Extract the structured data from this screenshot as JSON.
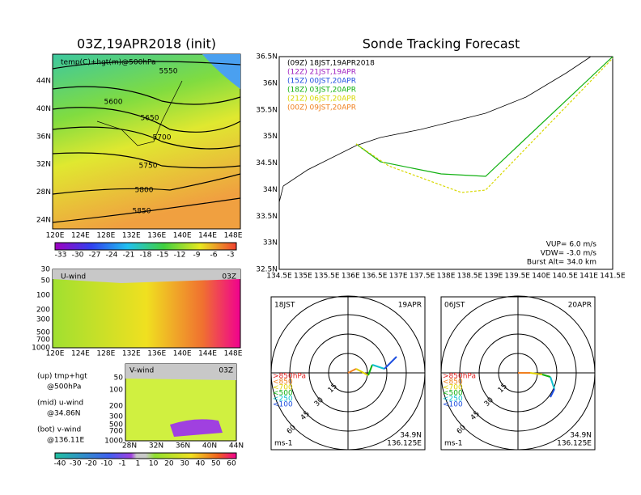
{
  "left_map": {
    "title": "03Z,19APR2018 (init)",
    "label": "temp(C)+hgt(m)@500hPa",
    "contour_labels": [
      "5550",
      "5600",
      "5650",
      "5700",
      "5750",
      "5800",
      "5850"
    ],
    "y_labels": [
      "44N",
      "40N",
      "36N",
      "32N",
      "28N",
      "24N"
    ],
    "x_labels": [
      "120E",
      "124E",
      "128E",
      "132E",
      "136E",
      "140E",
      "144E",
      "148E"
    ],
    "colorbar_labels": [
      "-33",
      "-30",
      "-27",
      "-24",
      "-21",
      "-18",
      "-15",
      "-12",
      "-9",
      "-6",
      "-3"
    ]
  },
  "u_wind": {
    "title": "U-wind",
    "time": "03Z",
    "y_labels": [
      "30",
      "50",
      "100",
      "200",
      "300",
      "500",
      "700",
      "1000"
    ],
    "x_labels": [
      "120E",
      "124E",
      "128E",
      "132E",
      "136E",
      "140E",
      "144E",
      "148E"
    ]
  },
  "v_wind": {
    "title": "V-wind",
    "time": "03Z",
    "y_labels": [
      "50",
      "100",
      "200",
      "300",
      "500",
      "700",
      "1000"
    ],
    "x_labels": [
      "28N",
      "32N",
      "36N",
      "40N",
      "44N"
    ]
  },
  "notes": [
    "(up) tmp+hgt",
    "@500hPa",
    "(mid) u-wind",
    "@34.86N",
    "(bot) v-wind",
    "@136.11E"
  ],
  "wind_colorbar_labels": [
    "-40",
    "-30",
    "-20",
    "-10",
    "-1",
    "1",
    "10",
    "20",
    "30",
    "40",
    "50",
    "60"
  ],
  "tracking": {
    "title": "Sonde Tracking Forecast",
    "entries": [
      {
        "label": "(09Z)  18JST,19APR2018",
        "color": "#000000"
      },
      {
        "label": "(12Z)  21JST,19APR",
        "color": "#a020c0"
      },
      {
        "label": "(15Z)  00JST,20APR",
        "color": "#1f4fe0"
      },
      {
        "label": "(18Z)  03JST,20APR",
        "color": "#10b010"
      },
      {
        "label": "(21Z)  06JST,20APR",
        "color": "#d8d800"
      },
      {
        "label": "(00Z)  09JST,20APR",
        "color": "#f08020"
      }
    ],
    "y_labels": [
      "36.5N",
      "36N",
      "35.5N",
      "35N",
      "34.5N",
      "34N",
      "33.5N",
      "33N",
      "32.5N"
    ],
    "x_labels": [
      "134.5E",
      "135E",
      "135.5E",
      "136E",
      "136.5E",
      "137E",
      "137.5E",
      "138E",
      "138.5E",
      "139E",
      "139.5E",
      "140E",
      "140.5E",
      "141E",
      "141.5E"
    ],
    "params": [
      "VUP=  6.0 m/s",
      "VDW= -3.0 m/s",
      "Burst Alt= 34.0 km"
    ]
  },
  "hodographs": [
    {
      "time": "18JST",
      "date": "19APR",
      "rings": [
        "15",
        "30",
        "45",
        "60"
      ],
      "levels": [
        ">850hPa",
        "<850",
        "<700",
        "<500",
        "<250",
        "<100"
      ],
      "unit": "ms-1",
      "location": [
        "34.9N",
        "136.125E"
      ]
    },
    {
      "time": "06JST",
      "date": "20APR",
      "rings": [
        "15",
        "30",
        "45",
        "60"
      ],
      "levels": [
        ">850hPa",
        "<850",
        "<700",
        "<500",
        "<250",
        "<100"
      ],
      "unit": "ms-1",
      "location": [
        "34.9N",
        "136.125E"
      ]
    }
  ]
}
